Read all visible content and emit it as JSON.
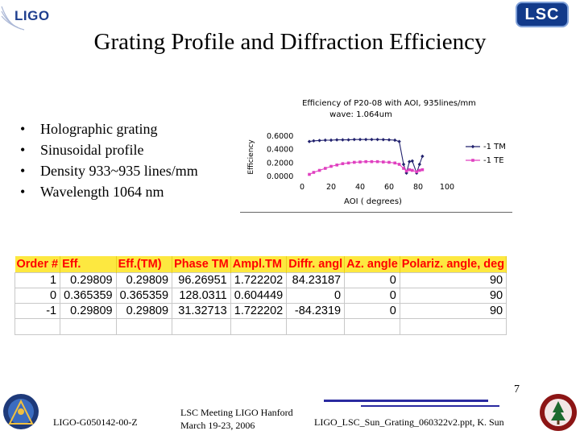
{
  "logos": {
    "left": "LIGO",
    "right": "LSC"
  },
  "title": "Grating Profile and Diffraction Efficiency",
  "bullets": [
    "Holographic grating",
    "Sinusoidal profile",
    "Density 933~935 lines/mm",
    "Wavelength 1064 nm"
  ],
  "chart_data": {
    "type": "line",
    "title": "Efficiency of P20-08 with AOI, 935lines/mm",
    "subtitle": "wave: 1.064um",
    "xlabel": "AOI ( degrees)",
    "ylabel": "Efficiency",
    "xlim": [
      0,
      100
    ],
    "ylim": [
      0,
      0.6
    ],
    "x_ticks": [
      0,
      20,
      40,
      60,
      80,
      100
    ],
    "y_ticks": [
      "0.0000",
      "0.2000",
      "0.4000",
      "0.6000"
    ],
    "legend_position": "right",
    "series": [
      {
        "name": "-1 TM",
        "color": "#22226e",
        "marker": "diamond",
        "points": [
          [
            5,
            0.52
          ],
          [
            8,
            0.53
          ],
          [
            12,
            0.535
          ],
          [
            16,
            0.54
          ],
          [
            20,
            0.54
          ],
          [
            24,
            0.545
          ],
          [
            28,
            0.545
          ],
          [
            32,
            0.545
          ],
          [
            36,
            0.55
          ],
          [
            40,
            0.55
          ],
          [
            44,
            0.55
          ],
          [
            48,
            0.55
          ],
          [
            52,
            0.55
          ],
          [
            56,
            0.548
          ],
          [
            60,
            0.545
          ],
          [
            64,
            0.54
          ],
          [
            67,
            0.52
          ],
          [
            70,
            0.18
          ],
          [
            72,
            0.05
          ],
          [
            74,
            0.22
          ],
          [
            76,
            0.23
          ],
          [
            79,
            0.05
          ],
          [
            81,
            0.18
          ],
          [
            83,
            0.3
          ]
        ]
      },
      {
        "name": "-1 TE",
        "color": "#e040c0",
        "marker": "square",
        "points": [
          [
            5,
            0.03
          ],
          [
            8,
            0.06
          ],
          [
            12,
            0.09
          ],
          [
            16,
            0.12
          ],
          [
            20,
            0.15
          ],
          [
            24,
            0.17
          ],
          [
            28,
            0.19
          ],
          [
            32,
            0.2
          ],
          [
            36,
            0.21
          ],
          [
            40,
            0.215
          ],
          [
            44,
            0.22
          ],
          [
            48,
            0.22
          ],
          [
            52,
            0.22
          ],
          [
            56,
            0.215
          ],
          [
            60,
            0.21
          ],
          [
            64,
            0.2
          ],
          [
            67,
            0.18
          ],
          [
            70,
            0.12
          ],
          [
            72,
            0.08
          ],
          [
            74,
            0.1
          ],
          [
            76,
            0.09
          ],
          [
            79,
            0.07
          ],
          [
            81,
            0.09
          ],
          [
            83,
            0.1
          ]
        ]
      }
    ]
  },
  "table": {
    "headers": [
      "Order #",
      "Eff.",
      "Eff.(TM)",
      "Phase TM",
      "Ampl.TM",
      "Diffr. angl",
      "Az. angle",
      "Polariz. angle, deg"
    ],
    "rows": [
      [
        "1",
        "0.29809",
        "0.29809",
        "96.26951",
        "1.722202",
        "84.23187",
        "0",
        "90"
      ],
      [
        "0",
        "0.365359",
        "0.365359",
        "128.0311",
        "0.604449",
        "0",
        "0",
        "90"
      ],
      [
        "-1",
        "0.29809",
        "0.29809",
        "31.32713",
        "1.722202",
        "-84.2319",
        "0",
        "90"
      ]
    ]
  },
  "footer": {
    "doc_id": "LIGO-G050142-00-Z",
    "meeting_line1": "LSC Meeting LIGO Hanford",
    "meeting_line2": "March 19-23, 2006",
    "filename": "LIGO_LSC_Sun_Grating_060322v2.ppt, K. Sun",
    "page": "7"
  }
}
